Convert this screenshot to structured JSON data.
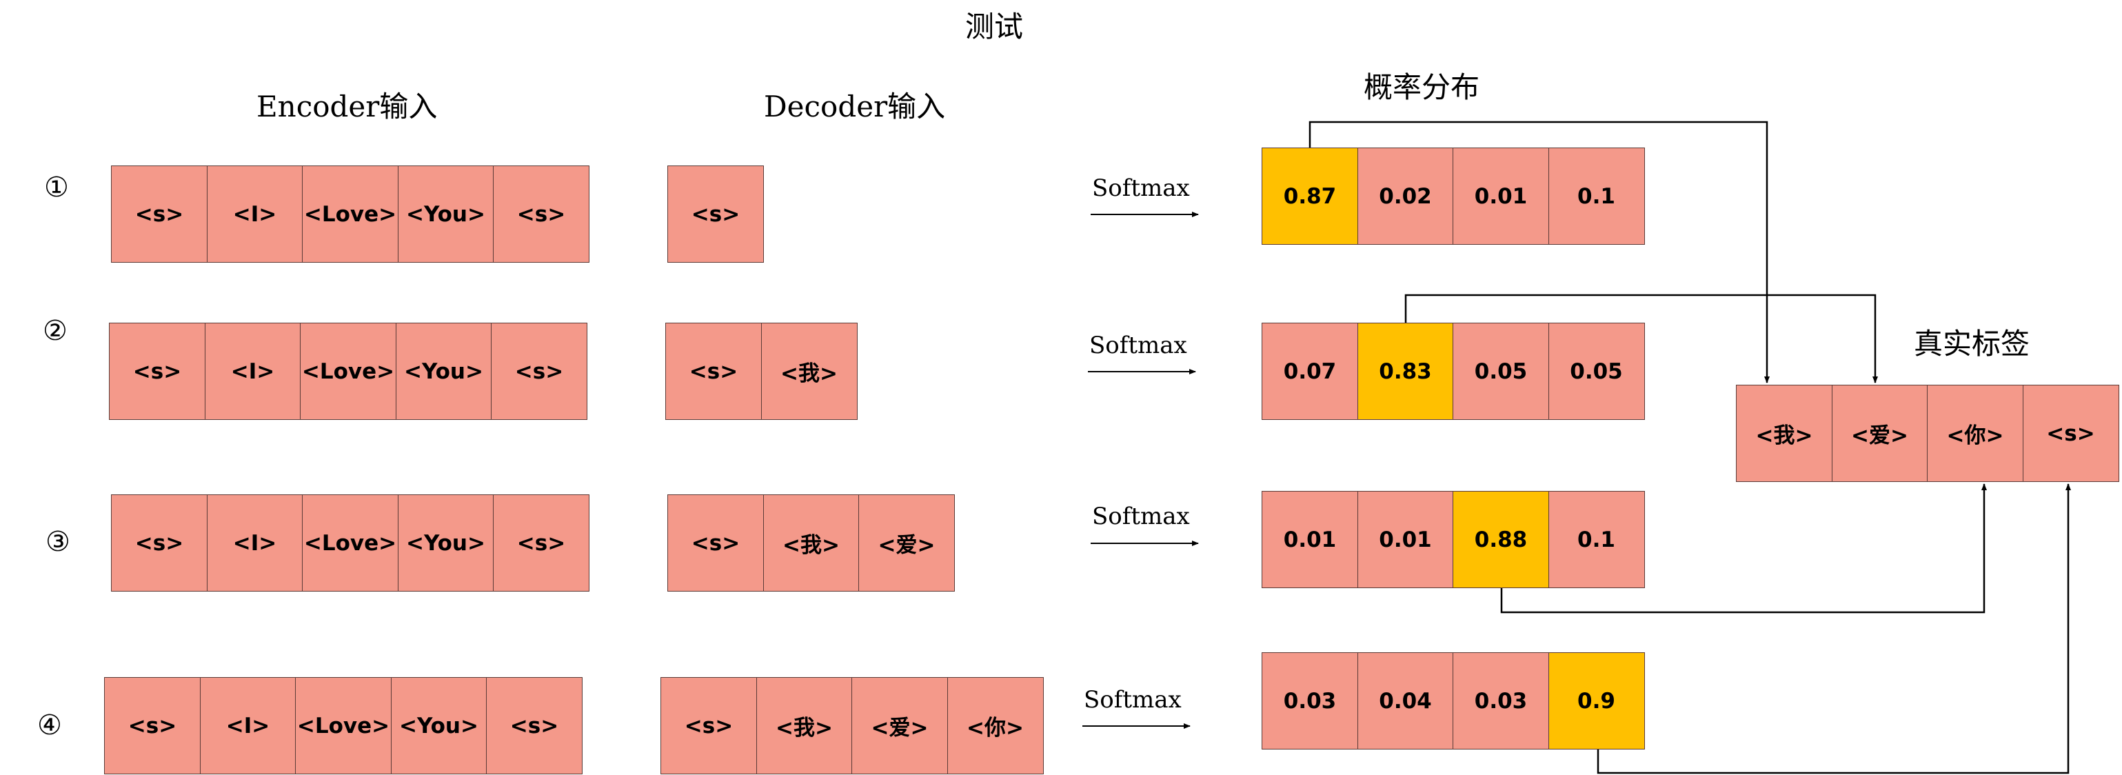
{
  "title": "测试",
  "headers": {
    "encoder": "Encoder输入",
    "decoder": "Decoder输入",
    "prob": "概率分布",
    "truth": "真实标签"
  },
  "softmax_label": "Softmax",
  "steps": [
    {
      "num": "①",
      "encoder": [
        "<s>",
        "<I>",
        "<Love>",
        "<You>",
        "<s>"
      ],
      "decoder": [
        "<s>"
      ],
      "probs": [
        "0.87",
        "0.02",
        "0.01",
        "0.1"
      ],
      "highlight": 0
    },
    {
      "num": "②",
      "encoder": [
        "<s>",
        "<I>",
        "<Love>",
        "<You>",
        "<s>"
      ],
      "decoder": [
        "<s>",
        "<我>"
      ],
      "probs": [
        "0.07",
        "0.83",
        "0.05",
        "0.05"
      ],
      "highlight": 1
    },
    {
      "num": "③",
      "encoder": [
        "<s>",
        "<I>",
        "<Love>",
        "<You>",
        "<s>"
      ],
      "decoder": [
        "<s>",
        "<我>",
        "<爱>"
      ],
      "probs": [
        "0.01",
        "0.01",
        "0.88",
        "0.1"
      ],
      "highlight": 2
    },
    {
      "num": "④",
      "encoder": [
        "<s>",
        "<I>",
        "<Love>",
        "<You>",
        "<s>"
      ],
      "decoder": [
        "<s>",
        "<我>",
        "<爱>",
        "<你>"
      ],
      "probs": [
        "0.03",
        "0.04",
        "0.03",
        "0.9"
      ],
      "highlight": 3
    }
  ],
  "truth": [
    "<我>",
    "<爱>",
    "<你>",
    "<s>"
  ],
  "colors": {
    "cell": "#f4998a",
    "highlight": "#ffc000",
    "border": "#5a3a36"
  }
}
